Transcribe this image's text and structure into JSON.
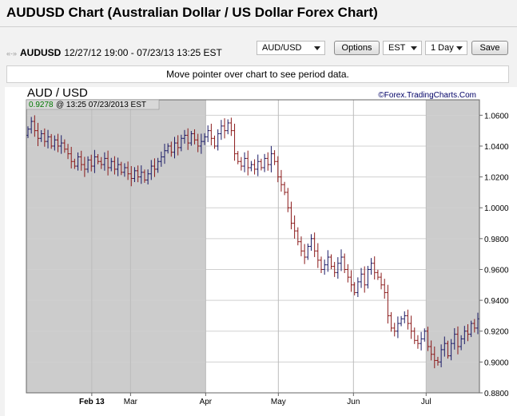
{
  "header": {
    "title": "AUDUSD Chart (Australian Dollar / US Dollar Forex Chart)"
  },
  "info": {
    "nav_arrows": "«-»",
    "symbol": "AUDUSD",
    "range": "12/27/12 19:00 - 07/23/13 13:25 EST"
  },
  "controls": {
    "symbol_select": "AUD/USD",
    "options_label": "Options",
    "timezone_select": "EST",
    "interval_select": "1 Day",
    "save_label": "Save"
  },
  "hint": "Move pointer over chart to see period data.",
  "chart_data": {
    "type": "ohlc",
    "title": "AUD / USD",
    "source": "©Forex.TradingCharts.Com",
    "readout": {
      "value": "0.9278",
      "time": "@ 13:25  07/23/2013 EST"
    },
    "ylim": [
      0.88,
      1.07
    ],
    "y_ticks": [
      "1.0600",
      "1.0400",
      "1.0200",
      "1.0000",
      "0.9800",
      "0.9600",
      "0.9400",
      "0.9200",
      "0.9000",
      "0.8800"
    ],
    "y_tick_values": [
      1.06,
      1.04,
      1.02,
      1.0,
      0.98,
      0.96,
      0.94,
      0.92,
      0.9,
      0.88
    ],
    "x_ticks": [
      "Feb 13",
      "Mar",
      "Apr",
      "May",
      "Jun",
      "Jul"
    ],
    "x_tick_dates": [
      "2013-02-13",
      "2013-03-01",
      "2013-04-01",
      "2013-05-01",
      "2013-06-01",
      "2013-07-01"
    ],
    "x_range": [
      "2013-01-17",
      "2013-07-23"
    ],
    "shaded_ranges": [
      [
        "2013-01-17",
        "2013-04-01"
      ],
      [
        "2013-07-01",
        "2013-07-23"
      ]
    ],
    "up_color": "#1a1a66",
    "down_color": "#8b1a1a",
    "shade_color": "#cccccc",
    "closes": [
      1.051,
      1.056,
      1.05,
      1.045,
      1.048,
      1.043,
      1.046,
      1.04,
      1.044,
      1.04,
      1.042,
      1.038,
      1.035,
      1.03,
      1.027,
      1.033,
      1.028,
      1.025,
      1.031,
      1.027,
      1.033,
      1.03,
      1.028,
      1.032,
      1.026,
      1.03,
      1.025,
      1.028,
      1.023,
      1.026,
      1.022,
      1.019,
      1.024,
      1.02,
      1.023,
      1.018,
      1.022,
      1.027,
      1.025,
      1.03,
      1.033,
      1.037,
      1.04,
      1.036,
      1.042,
      1.039,
      1.045,
      1.047,
      1.042,
      1.048,
      1.044,
      1.04,
      1.043,
      1.046,
      1.05,
      1.045,
      1.04,
      1.048,
      1.053,
      1.05,
      1.055,
      1.05,
      1.035,
      1.03,
      1.027,
      1.032,
      1.026,
      1.028,
      1.025,
      1.03,
      1.026,
      1.032,
      1.028,
      1.035,
      1.03,
      1.02,
      1.015,
      1.01,
      1.0,
      0.99,
      0.985,
      0.978,
      0.972,
      0.968,
      0.975,
      0.98,
      0.972,
      0.966,
      0.96,
      0.963,
      0.968,
      0.962,
      0.958,
      0.964,
      0.968,
      0.96,
      0.955,
      0.95,
      0.945,
      0.952,
      0.957,
      0.95,
      0.96,
      0.964,
      0.958,
      0.955,
      0.95,
      0.945,
      0.93,
      0.922,
      0.92,
      0.925,
      0.928,
      0.93,
      0.925,
      0.92,
      0.914,
      0.912,
      0.915,
      0.92,
      0.91,
      0.905,
      0.901,
      0.9,
      0.908,
      0.912,
      0.904,
      0.912,
      0.918,
      0.91,
      0.915,
      0.92,
      0.918,
      0.925,
      0.922,
      0.928
    ]
  }
}
